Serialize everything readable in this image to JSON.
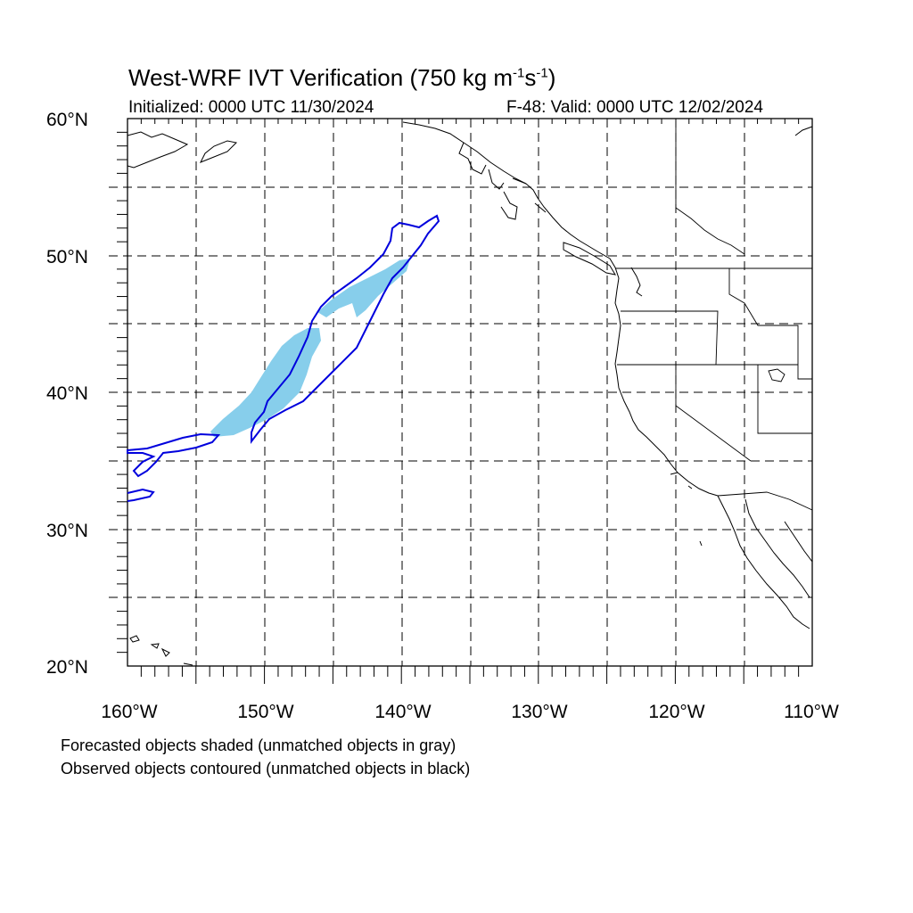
{
  "title": {
    "main": "West-WRF IVT Verification (750 kg m",
    "sup1": "-1",
    "mid": "s",
    "sup2": "-1",
    "end": ")"
  },
  "initialized": "Initialized: 0000 UTC 11/30/2024",
  "valid": "F-48: Valid: 0000 UTC 12/02/2024",
  "map": {
    "projection": "cylindrical-equidistant",
    "lon_range": [
      -160,
      -110
    ],
    "lat_range": [
      20,
      60
    ],
    "gridlines": "dashed every 5 degrees",
    "lat_labels": [
      "60°N",
      "50°N",
      "40°N",
      "30°N",
      "20°N"
    ],
    "lon_labels": [
      "160°W",
      "150°W",
      "140°W",
      "130°W",
      "120°W",
      "110°W"
    ]
  },
  "legend": {
    "line1": "Forecasted objects shaded (unmatched objects in gray)",
    "line2": "Observed objects contoured (unmatched objects in black)"
  },
  "colors": {
    "forecast_fill": "#87ceeb",
    "observed_contour": "#0000dd",
    "coastline": "#000000",
    "grid": "#000000"
  }
}
